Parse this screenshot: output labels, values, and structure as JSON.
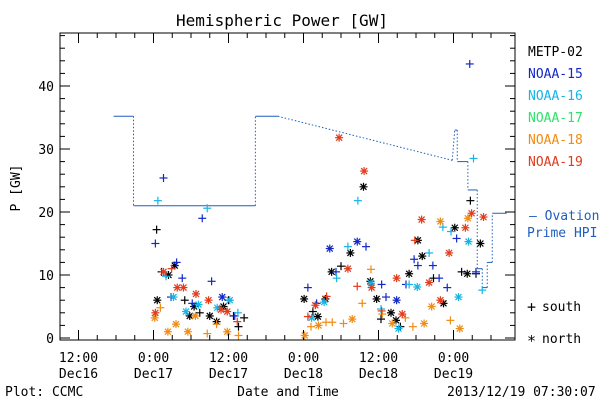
{
  "chart_data": {
    "type": "scatter",
    "title": "Hemispheric Power [GW]",
    "ylabel": "P [GW]",
    "xlabel": "Date and Time",
    "ylim": [
      0,
      48
    ],
    "yticks": [
      0,
      10,
      20,
      30,
      40
    ],
    "xlim_hours": [
      -6,
      56.5
    ],
    "xticks": [
      {
        "h": -12,
        "l1": "12:00",
        "l2": "Dec16"
      },
      {
        "h": 0,
        "l1": "0:00",
        "l2": "Dec17"
      },
      {
        "h": 12,
        "l1": "12:00",
        "l2": "Dec17"
      },
      {
        "h": 24,
        "l1": "0:00",
        "l2": "Dec18"
      },
      {
        "h": 36,
        "l1": "12:00",
        "l2": "Dec18"
      },
      {
        "h": 48,
        "l1": "0:00",
        "l2": "Dec19"
      }
    ],
    "legend": [
      {
        "name": "METP-02",
        "color": "#000000"
      },
      {
        "name": "NOAA-15",
        "color": "#1428c8"
      },
      {
        "name": "NOAA-16",
        "color": "#18b4e6"
      },
      {
        "name": "NOAA-17",
        "color": "#2ee26a"
      },
      {
        "name": "NOAA-18",
        "color": "#f08c14"
      },
      {
        "name": "NOAA-19",
        "color": "#e03c1e"
      }
    ],
    "ovation_label": [
      "– Ovation",
      "Prime HPI"
    ],
    "ovation_color": "#1f5fbf",
    "ovation_points": [
      [
        -6.4,
        35.2
      ],
      [
        -3.2,
        35.2
      ],
      [
        -3.2,
        21
      ],
      [
        16.3,
        21
      ],
      [
        16.3,
        35.2
      ],
      [
        19.9,
        35.2
      ],
      [
        47.8,
        28.2
      ],
      [
        48.2,
        33
      ],
      [
        48.6,
        33
      ],
      [
        48.6,
        28
      ],
      [
        50.3,
        28
      ],
      [
        50.3,
        23.5
      ],
      [
        51.8,
        23.5
      ],
      [
        51.8,
        11
      ],
      [
        52.6,
        11
      ],
      [
        52.6,
        8
      ],
      [
        53.4,
        8
      ],
      [
        53.4,
        12
      ],
      [
        54.2,
        12
      ],
      [
        54.2,
        19.8
      ],
      [
        56.5,
        19.8
      ]
    ],
    "markers": {
      "south": "+",
      "north": "*"
    },
    "series": [
      {
        "name": "METP-02",
        "color": "#000000",
        "points": [
          [
            0.5,
            17.2,
            "+"
          ],
          [
            0.6,
            6,
            "*"
          ],
          [
            1.3,
            10.5,
            "+"
          ],
          [
            2.4,
            10,
            "*"
          ],
          [
            3.4,
            11.5,
            "*"
          ],
          [
            5.0,
            6,
            "+"
          ],
          [
            5.8,
            3.5,
            "*"
          ],
          [
            6.5,
            5,
            "*"
          ],
          [
            7.4,
            4,
            "+"
          ],
          [
            9.0,
            3.5,
            "*"
          ],
          [
            10.1,
            2.6,
            "*"
          ],
          [
            11.2,
            5,
            "*"
          ],
          [
            12.0,
            6,
            "+"
          ],
          [
            12.8,
            3.5,
            "+"
          ],
          [
            13.6,
            1.8,
            "+"
          ],
          [
            14.5,
            3.2,
            "+"
          ],
          [
            24.1,
            6.2,
            "*"
          ],
          [
            25.5,
            4.2,
            "+"
          ],
          [
            26.3,
            3.4,
            "*"
          ],
          [
            27.5,
            6.2,
            "*"
          ],
          [
            28.5,
            10.5,
            "*"
          ],
          [
            30.0,
            11.4,
            "+"
          ],
          [
            31.5,
            13.5,
            "*"
          ],
          [
            33.6,
            24,
            "*"
          ],
          [
            34.7,
            9,
            "*"
          ],
          [
            35.7,
            6.2,
            "*"
          ],
          [
            36.4,
            3,
            "+"
          ],
          [
            38.0,
            4,
            "*"
          ],
          [
            38.8,
            2.8,
            "*"
          ],
          [
            39.5,
            1.8,
            "+"
          ],
          [
            40.9,
            10.2,
            "*"
          ],
          [
            42.3,
            15.5,
            "*"
          ],
          [
            43.0,
            13,
            "*"
          ],
          [
            44.8,
            9.5,
            "+"
          ],
          [
            46.4,
            5.5,
            "*"
          ],
          [
            48.2,
            17.5,
            "*"
          ],
          [
            49.3,
            10.5,
            "+"
          ],
          [
            50.2,
            10.2,
            "*"
          ],
          [
            50.7,
            21.8,
            "+"
          ],
          [
            51.6,
            10.2,
            "+"
          ],
          [
            52.3,
            15,
            "*"
          ]
        ]
      },
      {
        "name": "NOAA-15",
        "color": "#1428c8",
        "points": [
          [
            0.3,
            15,
            "+"
          ],
          [
            1.6,
            25.4,
            "+"
          ],
          [
            2.8,
            6.5,
            "+"
          ],
          [
            3.7,
            12,
            "+"
          ],
          [
            4.6,
            9.5,
            "+"
          ],
          [
            6.2,
            5.5,
            "+"
          ],
          [
            7.8,
            19,
            "+"
          ],
          [
            9.3,
            9,
            "+"
          ],
          [
            11.0,
            6.5,
            "*"
          ],
          [
            13.0,
            3.5,
            "+"
          ],
          [
            24.7,
            8,
            "+"
          ],
          [
            26.1,
            5.5,
            "+"
          ],
          [
            28.2,
            14.2,
            "*"
          ],
          [
            29.2,
            10.5,
            "+"
          ],
          [
            32.6,
            15.3,
            "*"
          ],
          [
            34.0,
            14.5,
            "+"
          ],
          [
            36.5,
            8.5,
            "+"
          ],
          [
            37.2,
            6.5,
            "+"
          ],
          [
            38.9,
            6,
            "*"
          ],
          [
            40.4,
            8.5,
            "+"
          ],
          [
            41.7,
            12.5,
            "+"
          ],
          [
            42.3,
            11.5,
            "+"
          ],
          [
            44.7,
            11.5,
            "+"
          ],
          [
            45.7,
            9.5,
            "+"
          ],
          [
            47.0,
            8,
            "+"
          ],
          [
            48.5,
            15.8,
            "+"
          ],
          [
            50.6,
            43.5,
            "+"
          ],
          [
            51.6,
            10.5,
            "+"
          ]
        ]
      },
      {
        "name": "NOAA-16",
        "color": "#18b4e6",
        "points": [
          [
            0.7,
            21.8,
            "+"
          ],
          [
            2.0,
            9.8,
            "+"
          ],
          [
            3.2,
            6.5,
            "*"
          ],
          [
            5.2,
            4.2,
            "*"
          ],
          [
            7.2,
            5.3,
            "*"
          ],
          [
            8.6,
            20.6,
            "+"
          ],
          [
            10.2,
            4.8,
            "*"
          ],
          [
            12.2,
            6,
            "*"
          ],
          [
            13.5,
            4,
            "+"
          ],
          [
            25.3,
            3.2,
            "*"
          ],
          [
            27.3,
            5.7,
            "*"
          ],
          [
            29.3,
            9.5,
            "+"
          ],
          [
            31.1,
            14.5,
            "+"
          ],
          [
            32.7,
            21.8,
            "+"
          ],
          [
            34.8,
            8.7,
            "*"
          ],
          [
            36.4,
            4.6,
            "+"
          ],
          [
            39.2,
            1.5,
            "*"
          ],
          [
            40.9,
            8.5,
            "+"
          ],
          [
            42.2,
            8.1,
            "*"
          ],
          [
            44.1,
            13.5,
            "+"
          ],
          [
            46.3,
            17.6,
            "+"
          ],
          [
            47.6,
            16.9,
            "+"
          ],
          [
            48.8,
            6.5,
            "*"
          ],
          [
            50.4,
            15.3,
            "*"
          ],
          [
            51.2,
            28.5,
            "+"
          ],
          [
            52.6,
            7.6,
            "+"
          ]
        ]
      },
      {
        "name": "NOAA-17",
        "color": "#2ee26a",
        "points": []
      },
      {
        "name": "NOAA-18",
        "color": "#f08c14",
        "points": [
          [
            0.2,
            3.2,
            "*"
          ],
          [
            1.1,
            4.8,
            "+"
          ],
          [
            2.3,
            1,
            "*"
          ],
          [
            3.6,
            2.2,
            "*"
          ],
          [
            5.5,
            1,
            "*"
          ],
          [
            6.7,
            3.5,
            "*"
          ],
          [
            8.6,
            0.7,
            "+"
          ],
          [
            10.1,
            2.2,
            "+"
          ],
          [
            11.8,
            1,
            "*"
          ],
          [
            13.6,
            0.4,
            "+"
          ],
          [
            24.2,
            0.4,
            "*"
          ],
          [
            25.2,
            1.8,
            "+"
          ],
          [
            26.4,
            2,
            "*"
          ],
          [
            27.6,
            2.5,
            "+"
          ],
          [
            28.6,
            2.5,
            "+"
          ],
          [
            30.4,
            2.3,
            "+"
          ],
          [
            31.8,
            3,
            "*"
          ],
          [
            33.4,
            5.5,
            "+"
          ],
          [
            34.8,
            10.9,
            "+"
          ],
          [
            36.6,
            3.8,
            "+"
          ],
          [
            38.2,
            2.3,
            "*"
          ],
          [
            40.3,
            3.2,
            "+"
          ],
          [
            41.5,
            1.8,
            "+"
          ],
          [
            43.3,
            2.3,
            "*"
          ],
          [
            44.5,
            5,
            "*"
          ],
          [
            45.9,
            18.5,
            "*"
          ],
          [
            47.5,
            2.8,
            "+"
          ],
          [
            49.0,
            1.5,
            "*"
          ],
          [
            50.3,
            19,
            "*"
          ]
        ]
      },
      {
        "name": "NOAA-19",
        "color": "#e03c1e",
        "points": [
          [
            0.3,
            4,
            "*"
          ],
          [
            1.6,
            10.5,
            "*"
          ],
          [
            2.9,
            11,
            "+"
          ],
          [
            3.8,
            8,
            "*"
          ],
          [
            4.8,
            8,
            "*"
          ],
          [
            6.8,
            7,
            "*"
          ],
          [
            8.8,
            6,
            "*"
          ],
          [
            10.8,
            4.5,
            "*"
          ],
          [
            11.8,
            4.2,
            "*"
          ],
          [
            13.4,
            2.6,
            "+"
          ],
          [
            24.7,
            3.4,
            "+"
          ],
          [
            25.9,
            5.2,
            "*"
          ],
          [
            27.7,
            6.6,
            "+"
          ],
          [
            29.7,
            31.8,
            "*"
          ],
          [
            31.1,
            11,
            "*"
          ],
          [
            32.6,
            8.2,
            "+"
          ],
          [
            33.7,
            26.5,
            "*"
          ],
          [
            34.9,
            8,
            "*"
          ],
          [
            36.5,
            4.3,
            "+"
          ],
          [
            38.9,
            9.5,
            "*"
          ],
          [
            39.8,
            3.8,
            "*"
          ],
          [
            41.8,
            15.5,
            "+"
          ],
          [
            42.9,
            18.8,
            "*"
          ],
          [
            44.1,
            8.8,
            "*"
          ],
          [
            45.9,
            6,
            "*"
          ],
          [
            47.3,
            13.5,
            "*"
          ],
          [
            49.9,
            17.5,
            "*"
          ],
          [
            50.9,
            19.8,
            "*"
          ],
          [
            52.8,
            19.2,
            "*"
          ]
        ]
      }
    ]
  },
  "footer": {
    "plot_credit": "Plot: CCMC",
    "timestamp": "2013/12/19 07:30:07"
  },
  "key": {
    "south": "south",
    "north": "north"
  }
}
